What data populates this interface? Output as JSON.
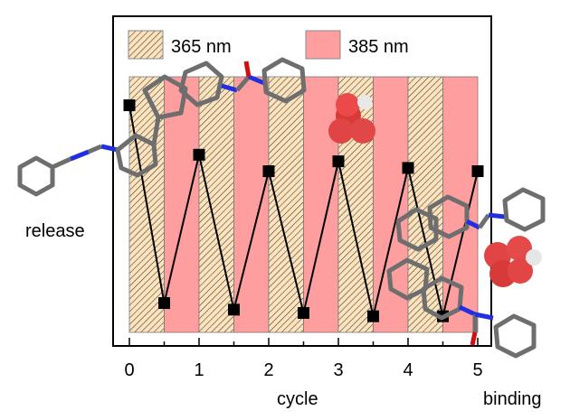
{
  "chart_data": {
    "type": "line",
    "xlabel": "cycle",
    "ylabel": "",
    "xlim": [
      -0.25,
      5.2
    ],
    "ylim": [
      0,
      1
    ],
    "x_ticks": [
      "0",
      "1",
      "2",
      "3",
      "4",
      "5"
    ],
    "grid": false,
    "legend": {
      "placement": "top",
      "entries": [
        {
          "label": "365 nm",
          "color": "#fde3bc",
          "pattern": "hatched"
        },
        {
          "label": "385 nm",
          "color": "#ff9e9e",
          "pattern": "solid"
        }
      ]
    },
    "bands": [
      {
        "from": 0,
        "to": 0.5,
        "type": "365 nm"
      },
      {
        "from": 0.5,
        "to": 1,
        "type": "385 nm"
      },
      {
        "from": 1,
        "to": 1.5,
        "type": "365 nm"
      },
      {
        "from": 1.5,
        "to": 2,
        "type": "385 nm"
      },
      {
        "from": 2,
        "to": 2.5,
        "type": "365 nm"
      },
      {
        "from": 2.5,
        "to": 3,
        "type": "385 nm"
      },
      {
        "from": 3,
        "to": 3.5,
        "type": "365 nm"
      },
      {
        "from": 3.5,
        "to": 4,
        "type": "385 nm"
      },
      {
        "from": 4,
        "to": 4.5,
        "type": "365 nm"
      },
      {
        "from": 4.5,
        "to": 5,
        "type": "385 nm"
      }
    ],
    "series": [
      {
        "x": [
          0,
          0.5,
          1,
          1.5,
          2,
          2.5,
          3,
          3.5,
          4,
          4.5,
          5
        ],
        "y": [
          0.73,
          0.13,
          0.58,
          0.11,
          0.53,
          0.1,
          0.56,
          0.09,
          0.54,
          0.09,
          0.53
        ],
        "marker": "square",
        "color": "#000000"
      }
    ],
    "annotations": [
      "release",
      "binding"
    ]
  }
}
